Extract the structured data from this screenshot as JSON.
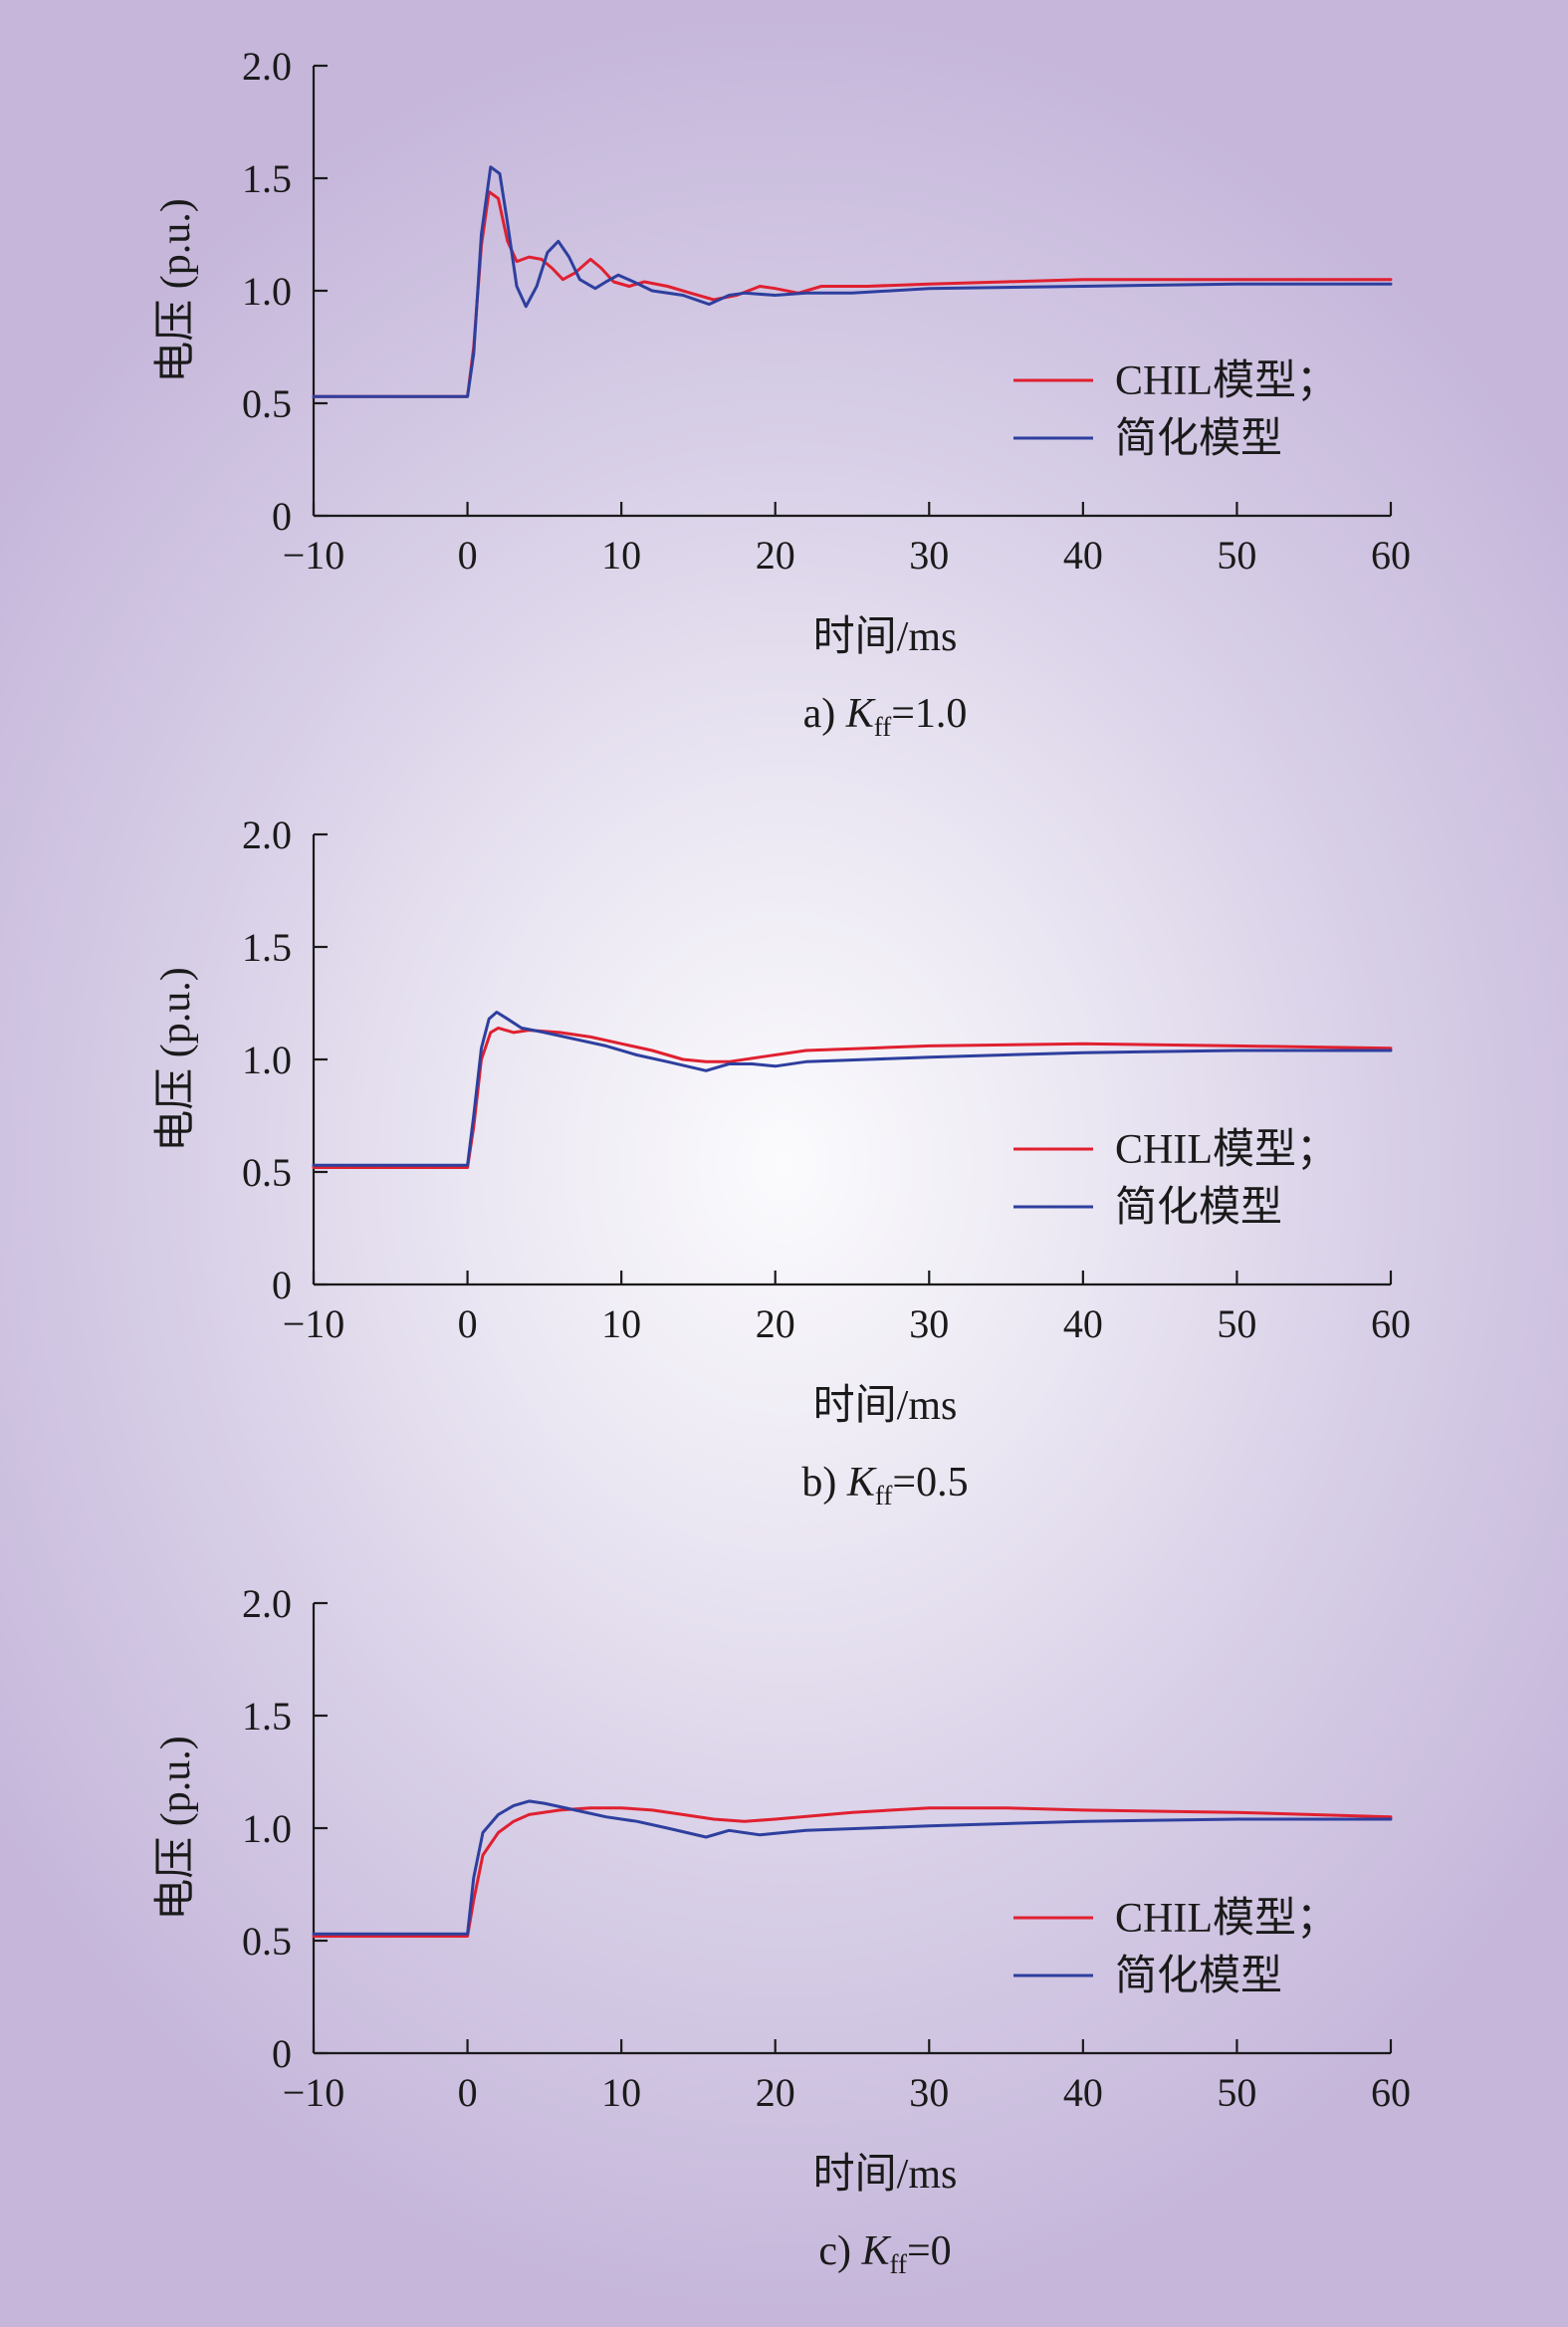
{
  "chart_data": [
    {
      "type": "line",
      "caption": {
        "prefix": "a) ",
        "var": "K",
        "sub": "ff",
        "suffix": "=1.0"
      },
      "xlabel": "时间/ms",
      "ylabel": "电压 (p.u.)",
      "xlim": [
        -10,
        60
      ],
      "ylim": [
        0,
        2.0
      ],
      "x_ticks": [
        "−10",
        "0",
        "10",
        "20",
        "30",
        "40",
        "50",
        "60"
      ],
      "y_ticks": [
        "0",
        "0.5",
        "1.0",
        "1.5",
        "2.0"
      ],
      "grid": false,
      "legend_position": "right",
      "colors": {
        "CHIL": "#e02030",
        "simplified": "#2e3f9e"
      },
      "series": [
        {
          "name": "CHIL模型；",
          "color": "#e02030",
          "points": [
            [
              -10,
              0.53
            ],
            [
              0,
              0.53
            ],
            [
              0.4,
              0.75
            ],
            [
              0.9,
              1.2
            ],
            [
              1.4,
              1.44
            ],
            [
              2.0,
              1.41
            ],
            [
              2.6,
              1.22
            ],
            [
              3.2,
              1.13
            ],
            [
              4.0,
              1.15
            ],
            [
              4.8,
              1.14
            ],
            [
              5.5,
              1.1
            ],
            [
              6.2,
              1.05
            ],
            [
              7.0,
              1.08
            ],
            [
              8.0,
              1.14
            ],
            [
              8.7,
              1.1
            ],
            [
              9.5,
              1.04
            ],
            [
              10.5,
              1.02
            ],
            [
              11.5,
              1.04
            ],
            [
              13,
              1.02
            ],
            [
              14.5,
              0.99
            ],
            [
              16,
              0.96
            ],
            [
              17.5,
              0.98
            ],
            [
              19,
              1.02
            ],
            [
              20,
              1.01
            ],
            [
              21.5,
              0.99
            ],
            [
              23,
              1.02
            ],
            [
              26,
              1.02
            ],
            [
              30,
              1.03
            ],
            [
              35,
              1.04
            ],
            [
              40,
              1.05
            ],
            [
              45,
              1.05
            ],
            [
              50,
              1.05
            ],
            [
              55,
              1.05
            ],
            [
              60,
              1.05
            ]
          ]
        },
        {
          "name": "简化模型",
          "color": "#2e3f9e",
          "points": [
            [
              -10,
              0.53
            ],
            [
              0,
              0.53
            ],
            [
              0.4,
              0.72
            ],
            [
              0.9,
              1.25
            ],
            [
              1.5,
              1.55
            ],
            [
              2.1,
              1.52
            ],
            [
              2.6,
              1.3
            ],
            [
              3.2,
              1.02
            ],
            [
              3.8,
              0.93
            ],
            [
              4.5,
              1.02
            ],
            [
              5.2,
              1.17
            ],
            [
              5.9,
              1.22
            ],
            [
              6.6,
              1.15
            ],
            [
              7.3,
              1.05
            ],
            [
              8.3,
              1.01
            ],
            [
              9.0,
              1.04
            ],
            [
              9.8,
              1.07
            ],
            [
              10.8,
              1.04
            ],
            [
              12,
              1.0
            ],
            [
              14,
              0.98
            ],
            [
              15.7,
              0.94
            ],
            [
              17,
              0.98
            ],
            [
              18,
              0.99
            ],
            [
              20,
              0.98
            ],
            [
              22,
              0.99
            ],
            [
              25,
              0.99
            ],
            [
              30,
              1.01
            ],
            [
              40,
              1.02
            ],
            [
              50,
              1.03
            ],
            [
              60,
              1.03
            ]
          ]
        }
      ]
    },
    {
      "type": "line",
      "caption": {
        "prefix": "b) ",
        "var": "K",
        "sub": "ff",
        "suffix": "=0.5"
      },
      "xlabel": "时间/ms",
      "ylabel": "电压 (p.u.)",
      "xlim": [
        -10,
        60
      ],
      "ylim": [
        0,
        2.0
      ],
      "x_ticks": [
        "−10",
        "0",
        "10",
        "20",
        "30",
        "40",
        "50",
        "60"
      ],
      "y_ticks": [
        "0",
        "0.5",
        "1.0",
        "1.5",
        "2.0"
      ],
      "grid": false,
      "legend_position": "right",
      "colors": {
        "CHIL": "#e02030",
        "simplified": "#2e3f9e"
      },
      "series": [
        {
          "name": "CHIL模型；",
          "color": "#e02030",
          "points": [
            [
              -10,
              0.52
            ],
            [
              0,
              0.52
            ],
            [
              0.4,
              0.7
            ],
            [
              0.9,
              1.0
            ],
            [
              1.5,
              1.12
            ],
            [
              2.0,
              1.14
            ],
            [
              3.0,
              1.12
            ],
            [
              4,
              1.13
            ],
            [
              6,
              1.12
            ],
            [
              8,
              1.1
            ],
            [
              10,
              1.07
            ],
            [
              12,
              1.04
            ],
            [
              14,
              1.0
            ],
            [
              15.5,
              0.99
            ],
            [
              17,
              0.99
            ],
            [
              19,
              1.01
            ],
            [
              22,
              1.04
            ],
            [
              26,
              1.05
            ],
            [
              30,
              1.06
            ],
            [
              40,
              1.07
            ],
            [
              50,
              1.06
            ],
            [
              60,
              1.05
            ]
          ]
        },
        {
          "name": "简化模型",
          "color": "#2e3f9e",
          "points": [
            [
              -10,
              0.53
            ],
            [
              0,
              0.53
            ],
            [
              0.4,
              0.75
            ],
            [
              0.9,
              1.05
            ],
            [
              1.4,
              1.18
            ],
            [
              1.9,
              1.21
            ],
            [
              2.6,
              1.18
            ],
            [
              3.5,
              1.14
            ],
            [
              5,
              1.12
            ],
            [
              7,
              1.09
            ],
            [
              9,
              1.06
            ],
            [
              11,
              1.02
            ],
            [
              13,
              0.99
            ],
            [
              15.5,
              0.95
            ],
            [
              17,
              0.98
            ],
            [
              18.5,
              0.98
            ],
            [
              20,
              0.97
            ],
            [
              22,
              0.99
            ],
            [
              26,
              1.0
            ],
            [
              30,
              1.01
            ],
            [
              40,
              1.03
            ],
            [
              50,
              1.04
            ],
            [
              60,
              1.04
            ]
          ]
        }
      ]
    },
    {
      "type": "line",
      "caption": {
        "prefix": "c) ",
        "var": "K",
        "sub": "ff",
        "suffix": "=0"
      },
      "xlabel": "时间/ms",
      "ylabel": "电压 (p.u.)",
      "xlim": [
        -10,
        60
      ],
      "ylim": [
        0,
        2.0
      ],
      "x_ticks": [
        "−10",
        "0",
        "10",
        "20",
        "30",
        "40",
        "50",
        "60"
      ],
      "y_ticks": [
        "0",
        "0.5",
        "1.0",
        "1.5",
        "2.0"
      ],
      "grid": false,
      "legend_position": "right",
      "colors": {
        "CHIL": "#e02030",
        "simplified": "#2e3f9e"
      },
      "series": [
        {
          "name": "CHIL模型；",
          "color": "#e02030",
          "points": [
            [
              -10,
              0.52
            ],
            [
              0,
              0.52
            ],
            [
              0.4,
              0.68
            ],
            [
              1.0,
              0.88
            ],
            [
              2,
              0.98
            ],
            [
              3,
              1.03
            ],
            [
              4,
              1.06
            ],
            [
              6,
              1.08
            ],
            [
              8,
              1.09
            ],
            [
              10,
              1.09
            ],
            [
              12,
              1.08
            ],
            [
              14,
              1.06
            ],
            [
              16,
              1.04
            ],
            [
              18,
              1.03
            ],
            [
              20,
              1.04
            ],
            [
              25,
              1.07
            ],
            [
              30,
              1.09
            ],
            [
              35,
              1.09
            ],
            [
              40,
              1.08
            ],
            [
              50,
              1.07
            ],
            [
              60,
              1.05
            ]
          ]
        },
        {
          "name": "简化模型",
          "color": "#2e3f9e",
          "points": [
            [
              -10,
              0.53
            ],
            [
              0,
              0.53
            ],
            [
              0.4,
              0.78
            ],
            [
              1.0,
              0.98
            ],
            [
              2,
              1.06
            ],
            [
              3,
              1.1
            ],
            [
              4,
              1.12
            ],
            [
              5,
              1.11
            ],
            [
              7,
              1.08
            ],
            [
              9,
              1.05
            ],
            [
              11,
              1.03
            ],
            [
              13,
              1.0
            ],
            [
              15.5,
              0.96
            ],
            [
              17,
              0.99
            ],
            [
              19,
              0.97
            ],
            [
              22,
              0.99
            ],
            [
              26,
              1.0
            ],
            [
              30,
              1.01
            ],
            [
              40,
              1.03
            ],
            [
              50,
              1.04
            ],
            [
              60,
              1.04
            ]
          ]
        }
      ]
    }
  ]
}
